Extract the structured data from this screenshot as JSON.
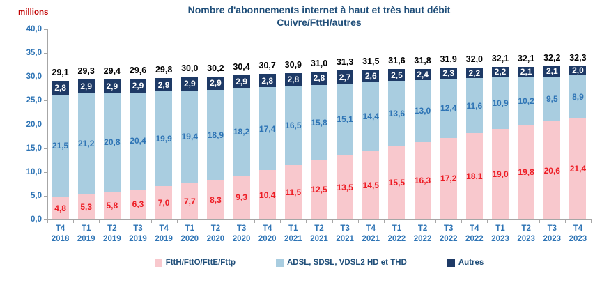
{
  "chart_data": {
    "type": "bar",
    "stacked": true,
    "title_line1": "Nombre d'abonnements internet à haut et très haut débit",
    "title_line2": "Cuivre/FttH/autres",
    "ylabel": "millions",
    "ylim": [
      0,
      40
    ],
    "ytick_step": 5,
    "grid": false,
    "legend_position": "bottom",
    "decimal_format": "french-comma",
    "categories": [
      {
        "quarter": "T4",
        "year": "2018"
      },
      {
        "quarter": "T1",
        "year": "2019"
      },
      {
        "quarter": "T2",
        "year": "2019"
      },
      {
        "quarter": "T3",
        "year": "2019"
      },
      {
        "quarter": "T4",
        "year": "2019"
      },
      {
        "quarter": "T1",
        "year": "2020"
      },
      {
        "quarter": "T2",
        "year": "2020"
      },
      {
        "quarter": "T3",
        "year": "2020"
      },
      {
        "quarter": "T4",
        "year": "2020"
      },
      {
        "quarter": "T1",
        "year": "2021"
      },
      {
        "quarter": "T2",
        "year": "2021"
      },
      {
        "quarter": "T3",
        "year": "2021"
      },
      {
        "quarter": "T4",
        "year": "2021"
      },
      {
        "quarter": "T1",
        "year": "2022"
      },
      {
        "quarter": "T2",
        "year": "2022"
      },
      {
        "quarter": "T3",
        "year": "2022"
      },
      {
        "quarter": "T4",
        "year": "2022"
      },
      {
        "quarter": "T1",
        "year": "2023"
      },
      {
        "quarter": "T2",
        "year": "2023"
      },
      {
        "quarter": "T3",
        "year": "2023"
      },
      {
        "quarter": "T4",
        "year": "2023"
      }
    ],
    "series": [
      {
        "name": "FttH/FttO/FttE/Fttp",
        "color": "#F8C8CD",
        "label_color": "#ED1C24",
        "values": [
          4.8,
          5.3,
          5.8,
          6.3,
          7.0,
          7.7,
          8.3,
          9.3,
          10.4,
          11.5,
          12.5,
          13.5,
          14.5,
          15.5,
          16.3,
          17.2,
          18.1,
          19.0,
          19.8,
          20.6,
          21.4
        ]
      },
      {
        "name": "ADSL, SDSL, VDSL2 HD et THD",
        "color": "#A9CDE0",
        "label_color": "#2E74B5",
        "values": [
          21.5,
          21.2,
          20.8,
          20.4,
          19.9,
          19.4,
          18.9,
          18.2,
          17.4,
          16.5,
          15.8,
          15.1,
          14.4,
          13.6,
          13.0,
          12.4,
          11.6,
          10.9,
          10.2,
          9.5,
          8.9
        ]
      },
      {
        "name": "Autres",
        "color": "#1E3A66",
        "label_color": "#FFFFFF",
        "values": [
          2.8,
          2.9,
          2.9,
          2.9,
          2.9,
          2.9,
          2.9,
          2.9,
          2.8,
          2.8,
          2.8,
          2.7,
          2.6,
          2.5,
          2.4,
          2.3,
          2.2,
          2.2,
          2.1,
          2.1,
          2.0
        ]
      }
    ],
    "totals": [
      29.1,
      29.3,
      29.4,
      29.6,
      29.8,
      30.0,
      30.2,
      30.4,
      30.7,
      30.9,
      31.0,
      31.3,
      31.5,
      31.6,
      31.8,
      31.9,
      32.0,
      32.1,
      32.1,
      32.2,
      32.3
    ],
    "colors": {
      "title": "#1F4E79",
      "ylabel": "#C00000",
      "axis_tick_labels": "#2E74B5",
      "category_labels": "#2E74B5",
      "totals": "#000000",
      "axis_line": "#A6A6A6",
      "legend_text": "#1F4E79"
    }
  }
}
